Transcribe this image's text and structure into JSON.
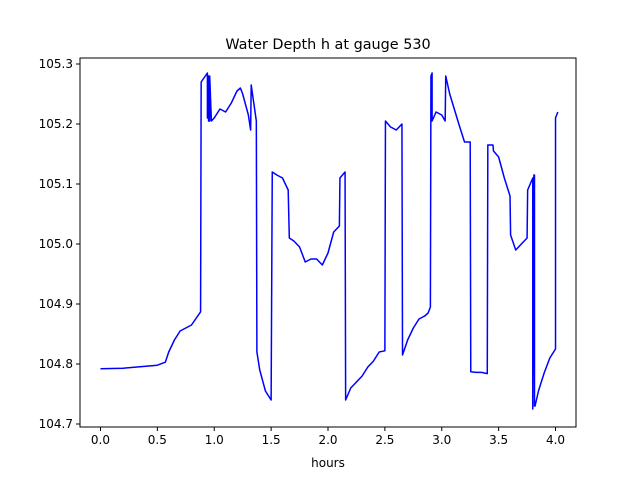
{
  "chart_data": {
    "type": "line",
    "title": "Water Depth h at gauge 530",
    "xlabel": "hours",
    "ylabel": "",
    "xlim": [
      -0.18,
      4.18
    ],
    "ylim": [
      104.695,
      105.31
    ],
    "xticks": [
      0.0,
      0.5,
      1.0,
      1.5,
      2.0,
      2.5,
      3.0,
      3.5,
      4.0
    ],
    "xtick_labels": [
      "0.0",
      "0.5",
      "1.0",
      "1.5",
      "2.0",
      "2.5",
      "3.0",
      "3.5",
      "4.0"
    ],
    "yticks": [
      104.7,
      104.8,
      104.9,
      105.0,
      105.1,
      105.2,
      105.3
    ],
    "ytick_labels": [
      "104.7",
      "104.8",
      "104.9",
      "105.0",
      "105.1",
      "105.2",
      "105.3"
    ],
    "grid": false,
    "series": [
      {
        "name": "",
        "color": "#0000ff",
        "x": [
          0.0,
          0.2,
          0.5,
          0.57,
          0.6,
          0.65,
          0.7,
          0.8,
          0.88,
          0.885,
          0.94,
          0.94,
          0.945,
          0.945,
          0.95,
          0.95,
          0.96,
          0.96,
          0.975,
          1.0,
          1.05,
          1.1,
          1.15,
          1.2,
          1.23,
          1.25,
          1.3,
          1.32,
          1.325,
          1.37,
          1.375,
          1.4,
          1.45,
          1.5,
          1.51,
          1.55,
          1.6,
          1.65,
          1.66,
          1.7,
          1.75,
          1.8,
          1.85,
          1.9,
          1.95,
          2.0,
          2.05,
          2.1,
          2.105,
          2.15,
          2.155,
          2.2,
          2.25,
          2.3,
          2.35,
          2.4,
          2.45,
          2.5,
          2.505,
          2.55,
          2.6,
          2.65,
          2.655,
          2.7,
          2.75,
          2.8,
          2.85,
          2.88,
          2.9,
          2.905,
          2.915,
          2.915,
          2.95,
          3.0,
          3.03,
          3.035,
          3.07,
          3.15,
          3.2,
          3.25,
          3.255,
          3.3,
          3.35,
          3.4,
          3.405,
          3.45,
          3.455,
          3.5,
          3.55,
          3.6,
          3.605,
          3.65,
          3.7,
          3.75,
          3.755,
          3.8,
          3.8,
          3.81,
          3.815,
          3.815,
          3.82,
          3.85,
          3.9,
          3.95,
          4.0,
          4.0,
          4.02
        ],
        "y": [
          104.792,
          104.793,
          104.798,
          104.803,
          104.82,
          104.84,
          104.855,
          104.865,
          104.887,
          105.27,
          105.285,
          105.21,
          105.21,
          105.28,
          105.28,
          105.205,
          105.205,
          105.28,
          105.205,
          105.21,
          105.225,
          105.22,
          105.235,
          105.255,
          105.26,
          105.25,
          105.215,
          105.19,
          105.265,
          105.205,
          104.82,
          104.79,
          104.755,
          104.74,
          105.12,
          105.115,
          105.11,
          105.09,
          105.01,
          105.005,
          104.995,
          104.97,
          104.975,
          104.975,
          104.965,
          104.985,
          105.02,
          105.03,
          105.11,
          105.12,
          104.74,
          104.76,
          104.77,
          104.78,
          104.795,
          104.805,
          104.82,
          104.822,
          105.205,
          105.195,
          105.19,
          105.2,
          104.815,
          104.84,
          104.86,
          104.875,
          104.88,
          104.885,
          104.895,
          105.28,
          105.285,
          105.205,
          105.22,
          105.215,
          105.205,
          105.28,
          105.25,
          105.2,
          105.17,
          105.17,
          104.787,
          104.786,
          104.786,
          104.784,
          105.165,
          105.165,
          105.155,
          105.145,
          105.11,
          105.08,
          105.015,
          104.99,
          105.0,
          105.01,
          105.09,
          105.11,
          104.725,
          105.115,
          105.115,
          104.73,
          104.73,
          104.755,
          104.785,
          104.81,
          104.825,
          105.21,
          105.22
        ]
      }
    ]
  }
}
